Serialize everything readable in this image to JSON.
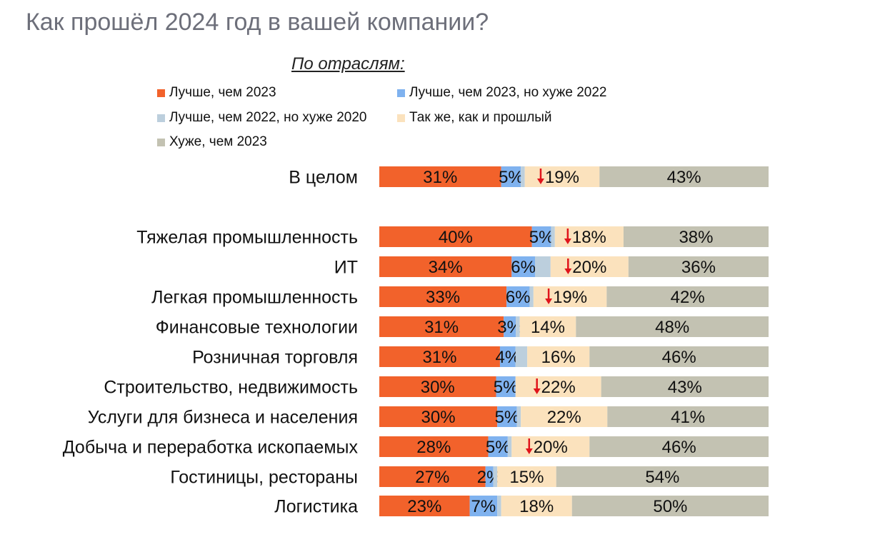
{
  "title": "Как прошёл 2024 год в вашей компании?",
  "subtitle": "По отраслям:",
  "colors": {
    "better_2023": "#f2622b",
    "better_2023_worse_2022": "#7fb2ef",
    "better_2022_worse_2020": "#bccfdd",
    "same": "#fbe2bd",
    "worse_2023": "#c3c2b2",
    "down_arrow": "#e0141b"
  },
  "chart_data": {
    "type": "bar",
    "orientation": "horizontal",
    "stacked": true,
    "percent_scale": true,
    "legend": [
      "Лучше, чем 2023",
      "Лучше, чем 2023, но хуже 2022",
      "Лучше, чем 2022, но хуже 2020",
      "Так же, как и прошлый",
      "Хуже, чем 2023"
    ],
    "categories": [
      "В целом",
      "Тяжелая промышленность",
      "ИТ",
      "Легкая промышленность",
      "Финансовые технологии",
      "Розничная торговля",
      "Строительство, недвижимость",
      "Услуги для бизнеса и населения",
      "Добыча и переработка ископаемых",
      "Гостиницы, рестораны",
      "Логистика"
    ],
    "series": [
      {
        "name": "Лучше, чем 2023",
        "values": [
          31,
          40,
          34,
          33,
          31,
          31,
          30,
          30,
          28,
          27,
          23
        ]
      },
      {
        "name": "Лучше, чем 2023, но хуже 2022",
        "values": [
          5,
          5,
          6,
          6,
          3,
          4,
          5,
          5,
          5,
          2,
          7
        ]
      },
      {
        "name": "Лучше, чем 2022, но хуже 2020",
        "values": [
          1,
          1,
          4,
          1,
          1,
          3,
          0,
          1,
          1,
          1,
          1
        ]
      },
      {
        "name": "Так же, как и прошлый",
        "values": [
          19,
          18,
          20,
          19,
          14,
          16,
          22,
          22,
          20,
          15,
          18
        ]
      },
      {
        "name": "Хуже, чем 2023",
        "values": [
          43,
          38,
          36,
          42,
          48,
          46,
          43,
          41,
          46,
          54,
          50
        ]
      }
    ],
    "labels": [
      [
        "31%",
        "5%",
        "",
        "19%",
        "43%"
      ],
      [
        "40%",
        "5%",
        "",
        "18%",
        "38%"
      ],
      [
        "34%",
        "6%",
        "",
        "20%",
        "36%"
      ],
      [
        "33%",
        "6%",
        "",
        "19%",
        "42%"
      ],
      [
        "31%",
        "3%",
        "",
        "14%",
        "48%"
      ],
      [
        "31%",
        "4%",
        "",
        "16%",
        "46%"
      ],
      [
        "30%",
        "5%",
        "",
        "22%",
        "43%"
      ],
      [
        "30%",
        "5%",
        "",
        "22%",
        "41%"
      ],
      [
        "28%",
        "5%",
        "",
        "20%",
        "46%"
      ],
      [
        "27%",
        "2%",
        "",
        "15%",
        "54%"
      ],
      [
        "23%",
        "7%",
        "",
        "18%",
        "50%"
      ]
    ],
    "down_arrow_on_same": [
      true,
      true,
      true,
      true,
      false,
      false,
      true,
      false,
      true,
      false,
      false
    ]
  }
}
